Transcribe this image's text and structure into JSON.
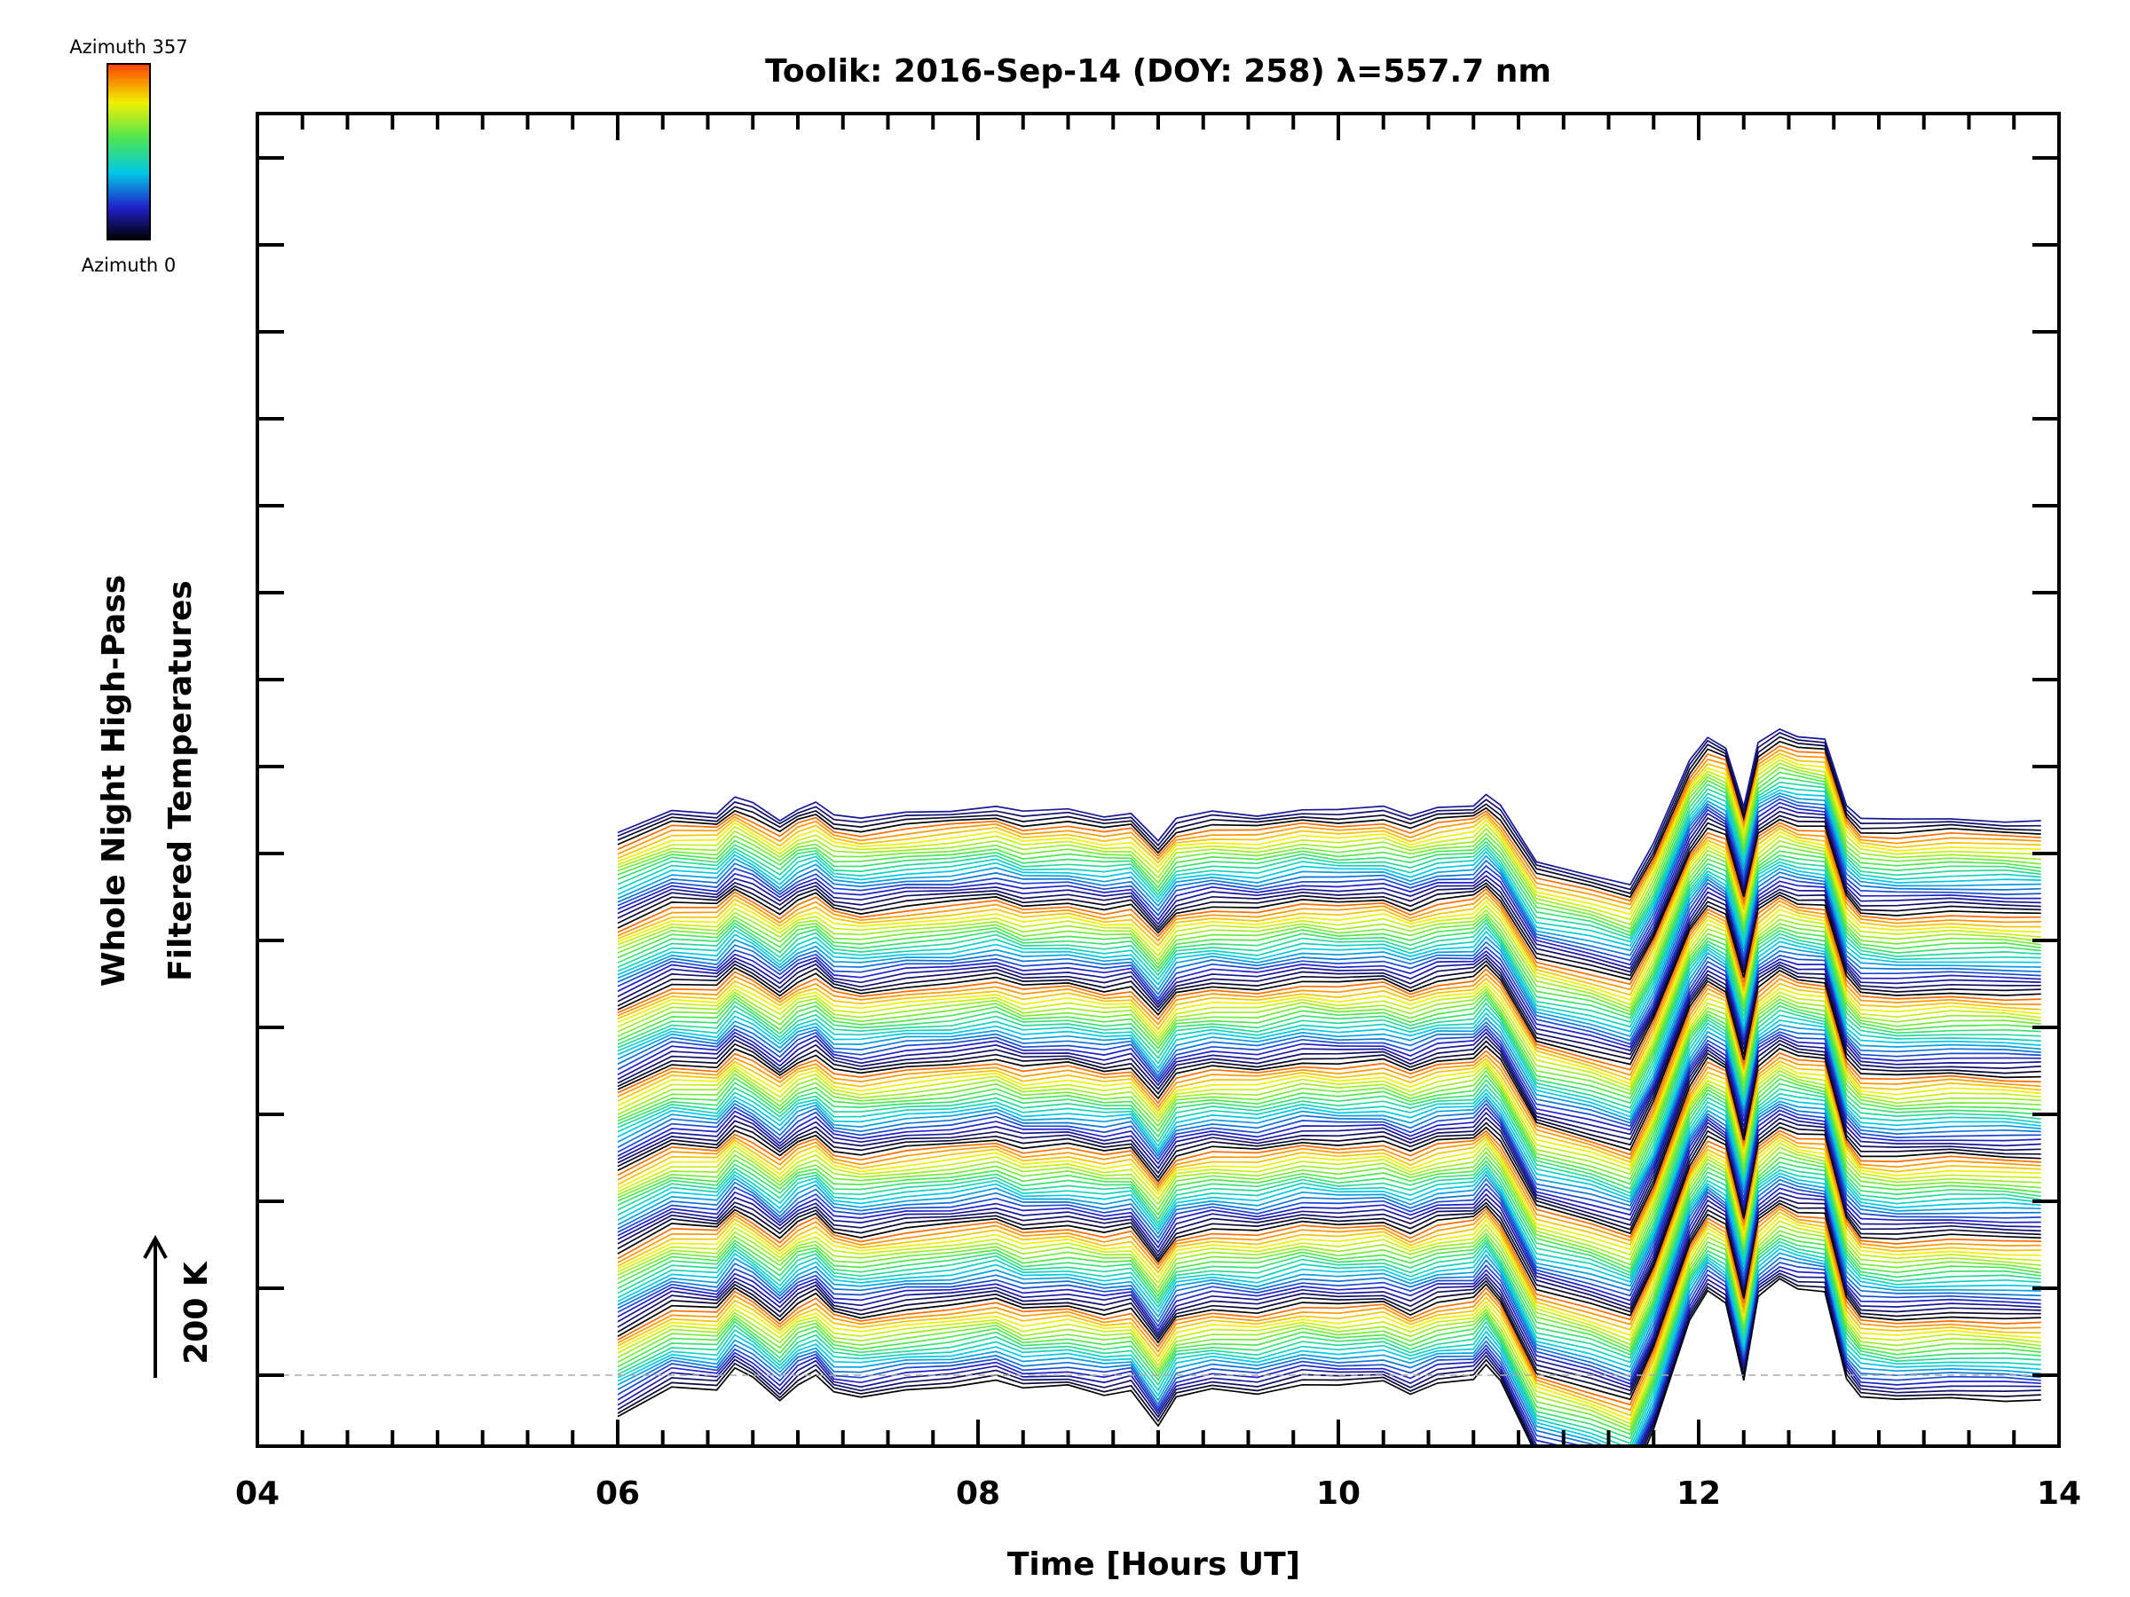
{
  "chart_data": {
    "type": "line",
    "title": "Toolik: 2016-Sep-14 (DOY: 258) λ=557.7 nm",
    "xlabel": "Time [Hours UT]",
    "ylabel_line1": "Whole Night High-Pass",
    "ylabel_line2": "Filtered Temperatures",
    "xlim": [
      4.0,
      14.0
    ],
    "x_tick_labels": [
      "04",
      "06",
      "08",
      "10",
      "12",
      "14"
    ],
    "x_tick_values": [
      4,
      6,
      8,
      10,
      12,
      14
    ],
    "scale_bar": {
      "label": "200 K",
      "kelvin": 200
    },
    "baseline": {
      "style": "dashed",
      "value": 0
    },
    "series_count": 144,
    "azimuth_range": [
      0,
      357
    ],
    "series_offset_kelvin": 50,
    "colorbar": {
      "label_top": "Azimuth 357",
      "label_bottom": "Azimuth 0",
      "colormap": "rainbow"
    },
    "colors": {
      "colormap_stops": [
        "#000000",
        "#2020c8",
        "#00c8e6",
        "#50e650",
        "#f0f000",
        "#ff4000"
      ],
      "baseline_color": "#aaaaaa",
      "axis_color": "#000000"
    },
    "profile": {
      "x": [
        6.0,
        6.3,
        6.55,
        6.65,
        6.75,
        6.9,
        7.0,
        7.1,
        7.2,
        7.35,
        7.6,
        7.85,
        8.1,
        8.25,
        8.5,
        8.7,
        8.85,
        9.0,
        9.1,
        9.3,
        9.55,
        9.8,
        10.0,
        10.25,
        10.4,
        10.55,
        10.75,
        10.82,
        10.9,
        11.1,
        11.4,
        11.62,
        11.75,
        11.95,
        12.05,
        12.15,
        12.25,
        12.33,
        12.45,
        12.55,
        12.7,
        12.82,
        12.9,
        13.1,
        13.4,
        13.7,
        13.9
      ],
      "y": [
        -110,
        -30,
        -40,
        20,
        -10,
        -70,
        -20,
        0,
        -50,
        -60,
        -40,
        -30,
        -10,
        -40,
        -30,
        -50,
        -40,
        -140,
        -60,
        -40,
        -50,
        -20,
        -30,
        -20,
        -50,
        -20,
        -10,
        30,
        -20,
        -220,
        -260,
        -300,
        -150,
        150,
        230,
        200,
        -10,
        210,
        260,
        240,
        230,
        -10,
        -60,
        -70,
        -60,
        -65,
        -70
      ]
    }
  }
}
